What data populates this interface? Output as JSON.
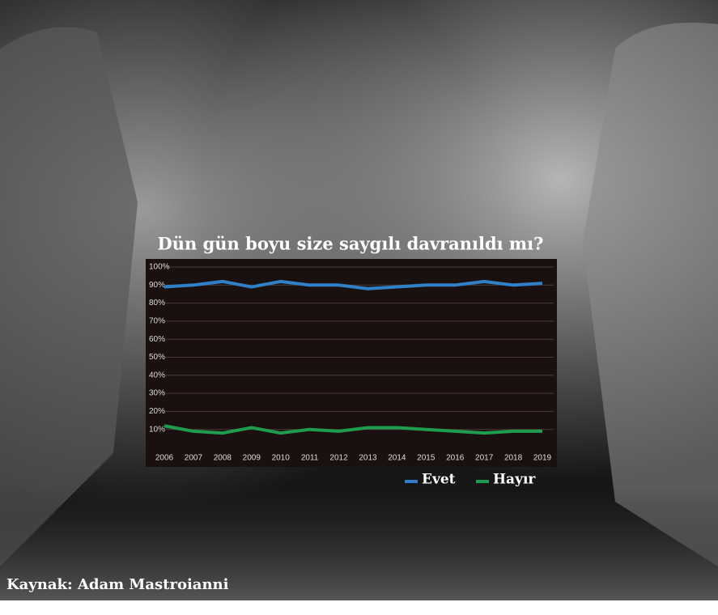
{
  "chart_data": {
    "type": "line",
    "title": "Dün gün boyu size saygılı davranıldı mı?",
    "source": "Kaynak: Adam Mastroianni",
    "categories": [
      "2006",
      "2007",
      "2008",
      "2009",
      "2010",
      "2011",
      "2012",
      "2013",
      "2014",
      "2015",
      "2016",
      "2017",
      "2018",
      "2019"
    ],
    "series": [
      {
        "name": "Evet",
        "color": "#2f80c8",
        "values": [
          89,
          90,
          92,
          89,
          92,
          90,
          90,
          88,
          89,
          90,
          90,
          92,
          90,
          91
        ]
      },
      {
        "name": "Hayır",
        "color": "#1f9d4f",
        "values": [
          12,
          9,
          8,
          11,
          8,
          10,
          9,
          11,
          11,
          10,
          9,
          8,
          9,
          9
        ]
      }
    ],
    "ylim": [
      0,
      100
    ],
    "yticks": [
      {
        "value": 10,
        "label": "10%"
      },
      {
        "value": 20,
        "label": "20%"
      },
      {
        "value": 30,
        "label": "30%"
      },
      {
        "value": 40,
        "label": "40%"
      },
      {
        "value": 50,
        "label": "50%"
      },
      {
        "value": 60,
        "label": "60%"
      },
      {
        "value": 70,
        "label": "70%"
      },
      {
        "value": 80,
        "label": "80%"
      },
      {
        "value": 90,
        "label": "90%"
      },
      {
        "value": 100,
        "label": "100%"
      }
    ],
    "grid": true,
    "legend": "bottom-right"
  }
}
